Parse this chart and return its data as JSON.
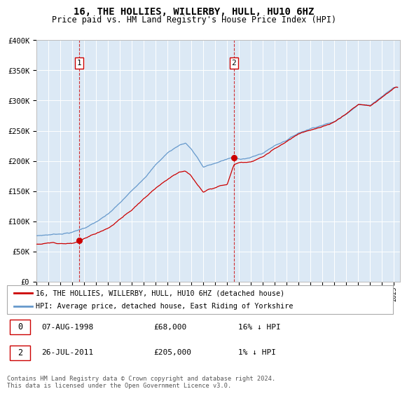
{
  "title": "16, THE HOLLIES, WILLERBY, HULL, HU10 6HZ",
  "subtitle": "Price paid vs. HM Land Registry's House Price Index (HPI)",
  "ylim": [
    0,
    400000
  ],
  "yticks": [
    0,
    50000,
    100000,
    150000,
    200000,
    250000,
    300000,
    350000,
    400000
  ],
  "ytick_labels": [
    "£0",
    "£50K",
    "£100K",
    "£150K",
    "£200K",
    "£250K",
    "£300K",
    "£350K",
    "£400K"
  ],
  "hpi_color": "#6699cc",
  "price_color": "#cc0000",
  "purchase1_year": 1998.59,
  "purchase1_price": 68000,
  "purchase2_year": 2011.56,
  "purchase2_price": 205000,
  "legend_line1": "16, THE HOLLIES, WILLERBY, HULL, HU10 6HZ (detached house)",
  "legend_line2": "HPI: Average price, detached house, East Riding of Yorkshire",
  "table_row1_date": "07-AUG-1998",
  "table_row1_price": "£68,000",
  "table_row1_hpi": "16% ↓ HPI",
  "table_row2_date": "26-JUL-2011",
  "table_row2_price": "£205,000",
  "table_row2_hpi": "1% ↓ HPI",
  "footer": "Contains HM Land Registry data © Crown copyright and database right 2024.\nThis data is licensed under the Open Government Licence v3.0.",
  "bg_color": "#dce9f5",
  "hpi_waypoints_x": [
    1995,
    1996,
    1997,
    1998,
    1999,
    2000,
    2001,
    2002,
    2003,
    2004,
    2005,
    2006,
    2007,
    2007.5,
    2008,
    2008.5,
    2009,
    2009.5,
    2010,
    2010.5,
    2011,
    2011.5,
    2012,
    2013,
    2014,
    2015,
    2016,
    2017,
    2018,
    2019,
    2020,
    2021,
    2022,
    2023,
    2024,
    2025
  ],
  "hpi_waypoints_y": [
    76000,
    78000,
    80000,
    83000,
    90000,
    100000,
    112000,
    130000,
    150000,
    172000,
    195000,
    215000,
    228000,
    232000,
    222000,
    208000,
    192000,
    195000,
    198000,
    202000,
    205000,
    208000,
    205000,
    208000,
    215000,
    228000,
    238000,
    250000,
    258000,
    265000,
    270000,
    285000,
    300000,
    300000,
    315000,
    330000
  ],
  "price_waypoints_x": [
    1995,
    1996,
    1997,
    1998,
    1998.59,
    1999,
    2000,
    2001,
    2002,
    2003,
    2004,
    2005,
    2006,
    2007,
    2007.5,
    2008,
    2008.5,
    2009,
    2009.5,
    2010,
    2010.5,
    2011,
    2011.56,
    2012,
    2013,
    2014,
    2015,
    2016,
    2017,
    2018,
    2019,
    2020,
    2021,
    2022,
    2023,
    2024,
    2025
  ],
  "price_waypoints_y": [
    62000,
    64000,
    65000,
    66000,
    68000,
    73000,
    82000,
    92000,
    107000,
    123000,
    141000,
    160000,
    176000,
    190000,
    192000,
    183000,
    170000,
    158000,
    162000,
    165000,
    170000,
    172000,
    205000,
    208000,
    210000,
    217000,
    230000,
    240000,
    252000,
    260000,
    266000,
    272000,
    287000,
    302000,
    300000,
    315000,
    330000
  ]
}
